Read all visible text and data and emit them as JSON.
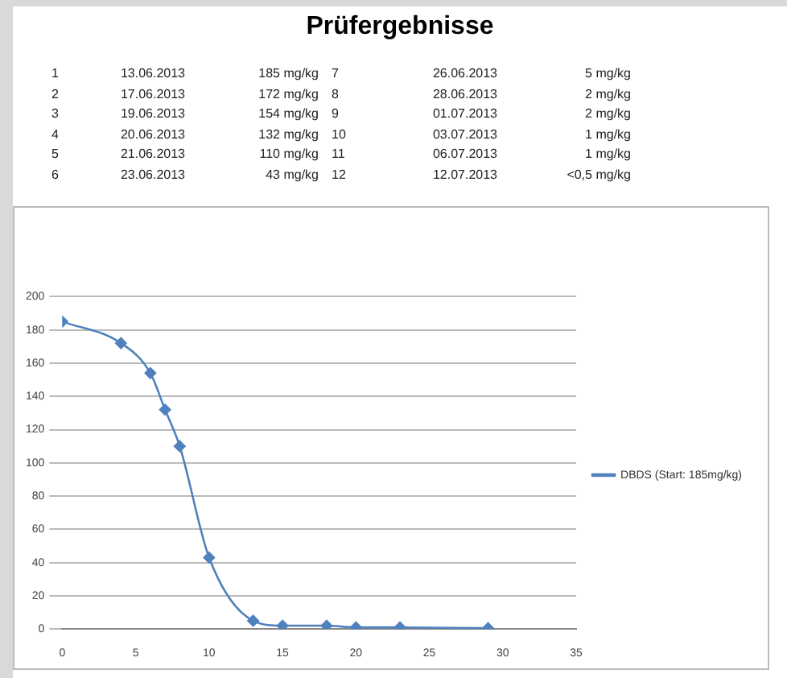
{
  "chart_data": {
    "type": "line",
    "title": "Prüfergebnisse",
    "annotations": [
      "1",
      "13.06.2013",
      "185 mg/kg",
      "7",
      "26.06.2013",
      "5 mg/kg",
      "2",
      "17.06.2013",
      "172 mg/kg",
      "8",
      "28.06.2013",
      "2 mg/kg",
      "3",
      "19.06.2013",
      "154 mg/kg",
      "9",
      "01.07.2013",
      "2 mg/kg",
      "4",
      "20.06.2013",
      "132 mg/kg",
      "10",
      "03.07.2013",
      "1 mg/kg",
      "5",
      "21.06.2013",
      "110 mg/kg",
      "11",
      "06.07.2013",
      "1 mg/kg",
      "6",
      "23.06.2013",
      "43 mg/kg",
      "12",
      "12.07.2013",
      "<0,5 mg/kg"
    ],
    "x": [
      0,
      4,
      6,
      7,
      8,
      10,
      13,
      15,
      18,
      20,
      23,
      29
    ],
    "series": [
      {
        "name": "DBDS (Start: 185mg/kg)",
        "color": "#4f81bd",
        "values": [
          185,
          172,
          154,
          132,
          110,
          43,
          5,
          2,
          2,
          1,
          1,
          0.5
        ]
      }
    ],
    "xlim": [
      0,
      35
    ],
    "xticks": [
      0,
      5,
      10,
      15,
      20,
      25,
      30,
      35
    ],
    "ylim": [
      0,
      200
    ],
    "yticks": [
      0,
      20,
      40,
      60,
      80,
      100,
      120,
      140,
      160,
      180,
      200
    ],
    "grid": "y",
    "legend": "right",
    "marker": "diamond",
    "line_style": "solid"
  }
}
